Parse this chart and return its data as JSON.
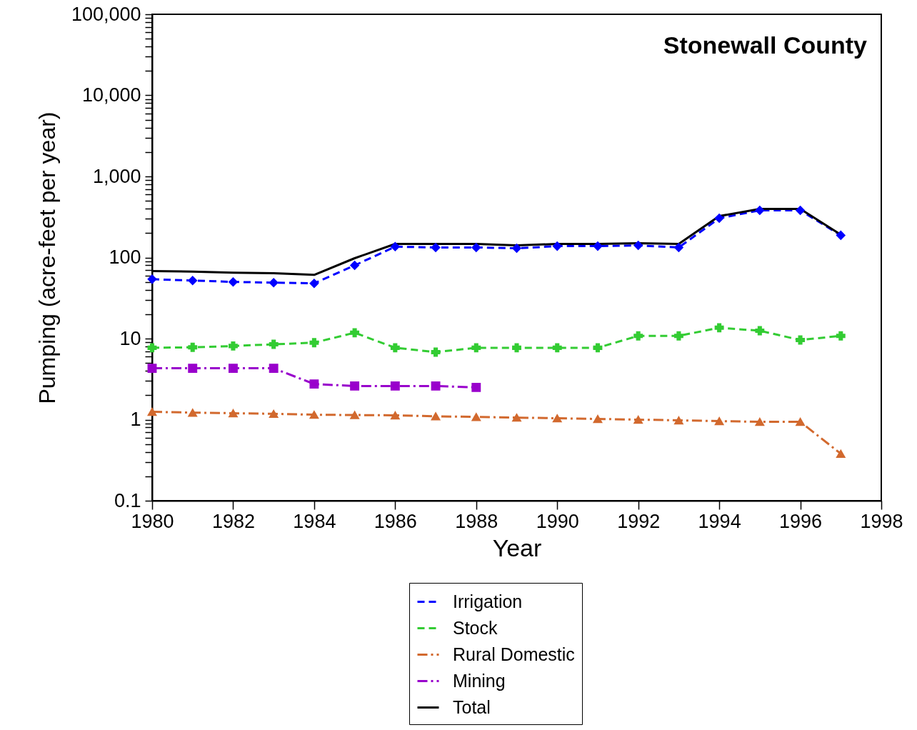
{
  "chart_data": {
    "type": "line",
    "title": "Stonewall County",
    "xlabel": "Year",
    "ylabel": "Pumping (acre-feet per year)",
    "x": [
      1980,
      1981,
      1982,
      1983,
      1984,
      1985,
      1986,
      1987,
      1988,
      1989,
      1990,
      1991,
      1992,
      1993,
      1994,
      1995,
      1996,
      1997
    ],
    "series": [
      {
        "name": "Irrigation",
        "color": "#0000ff",
        "marker": "diamond",
        "line_style": "dashed",
        "values": [
          54,
          52,
          50,
          49,
          48,
          80,
          136,
          133,
          133,
          130,
          138,
          138,
          141,
          133,
          305,
          382,
          382,
          188
        ]
      },
      {
        "name": "Stock",
        "color": "#33cc33",
        "marker": "cross",
        "line_style": "dashed",
        "values": [
          7.7,
          7.8,
          8.1,
          8.5,
          8.9,
          11.8,
          7.7,
          6.8,
          7.7,
          7.7,
          7.7,
          7.7,
          10.8,
          10.8,
          13.6,
          12.5,
          9.6,
          10.8
        ]
      },
      {
        "name": "Rural Domestic",
        "color": "#d2692e",
        "marker": "triangle",
        "line_style": "dashdot",
        "values": [
          1.25,
          1.22,
          1.2,
          1.18,
          1.15,
          1.14,
          1.13,
          1.1,
          1.08,
          1.06,
          1.04,
          1.02,
          1.0,
          0.98,
          0.96,
          0.94,
          0.94,
          0.38
        ]
      },
      {
        "name": "Mining",
        "color": "#9900cc",
        "marker": "square",
        "line_style": "dashdot",
        "values": [
          4.3,
          4.3,
          4.3,
          4.3,
          2.75,
          2.6,
          2.6,
          2.6,
          2.5,
          null,
          null,
          null,
          null,
          null,
          null,
          null,
          null,
          null
        ]
      },
      {
        "name": "Total",
        "color": "#000000",
        "marker": "none",
        "line_style": "solid",
        "values": [
          68,
          67,
          65,
          64,
          61,
          98,
          147,
          147,
          147,
          141,
          147,
          147,
          150,
          147,
          324,
          397,
          397,
          191
        ]
      }
    ],
    "log": true,
    "grid": false,
    "legend": "bottom",
    "xlim": [
      1980,
      1998
    ],
    "xticks": [
      1980,
      1982,
      1984,
      1986,
      1988,
      1990,
      1992,
      1994,
      1996,
      1998
    ],
    "ylim": [
      0.1,
      100000
    ],
    "yticks": [
      0.1,
      {
        "value": 0.2,
        "label": null
      },
      {
        "value": 0.3,
        "label": null
      },
      {
        "value": 0.4,
        "label": null
      },
      {
        "value": 0.5,
        "label": null
      },
      {
        "value": 0.6,
        "label": null
      },
      {
        "value": 0.7,
        "label": null
      },
      {
        "value": 0.8,
        "label": null
      },
      {
        "value": 0.9,
        "label": null
      },
      1,
      {
        "value": 2,
        "label": null
      },
      {
        "value": 3,
        "label": null
      },
      {
        "value": 4,
        "label": null
      },
      {
        "value": 5,
        "label": null
      },
      {
        "value": 6,
        "label": null
      },
      {
        "value": 7,
        "label": null
      },
      {
        "value": 8,
        "label": null
      },
      {
        "value": 9,
        "label": null
      },
      10,
      {
        "value": 20,
        "label": null
      },
      {
        "value": 30,
        "label": null
      },
      {
        "value": 40,
        "label": null
      },
      {
        "value": 50,
        "label": null
      },
      {
        "value": 60,
        "label": null
      },
      {
        "value": 70,
        "label": null
      },
      {
        "value": 80,
        "label": null
      },
      {
        "value": 90,
        "label": null
      },
      100,
      {
        "value": 200,
        "label": null
      },
      {
        "value": 300,
        "label": null
      },
      {
        "value": 400,
        "label": null
      },
      {
        "value": 500,
        "label": null
      },
      {
        "value": 600,
        "label": null
      },
      {
        "value": 700,
        "label": null
      },
      {
        "value": 800,
        "label": null
      },
      {
        "value": 900,
        "label": null
      },
      {
        "value": 1000,
        "label": "1,000"
      },
      {
        "value": 2000,
        "label": null
      },
      {
        "value": 3000,
        "label": null
      },
      {
        "value": 4000,
        "label": null
      },
      {
        "value": 5000,
        "label": null
      },
      {
        "value": 6000,
        "label": null
      },
      {
        "value": 7000,
        "label": null
      },
      {
        "value": 8000,
        "label": null
      },
      {
        "value": 9000,
        "label": null
      },
      {
        "value": 10000,
        "label": "10,000"
      },
      {
        "value": 20000,
        "label": null
      },
      {
        "value": 30000,
        "label": null
      },
      {
        "value": 40000,
        "label": null
      },
      {
        "value": 50000,
        "label": null
      },
      {
        "value": 60000,
        "label": null
      },
      {
        "value": 70000,
        "label": null
      },
      {
        "value": 80000,
        "label": null
      },
      {
        "value": 90000,
        "label": null
      },
      {
        "value": 100000,
        "label": "100,000"
      }
    ]
  }
}
